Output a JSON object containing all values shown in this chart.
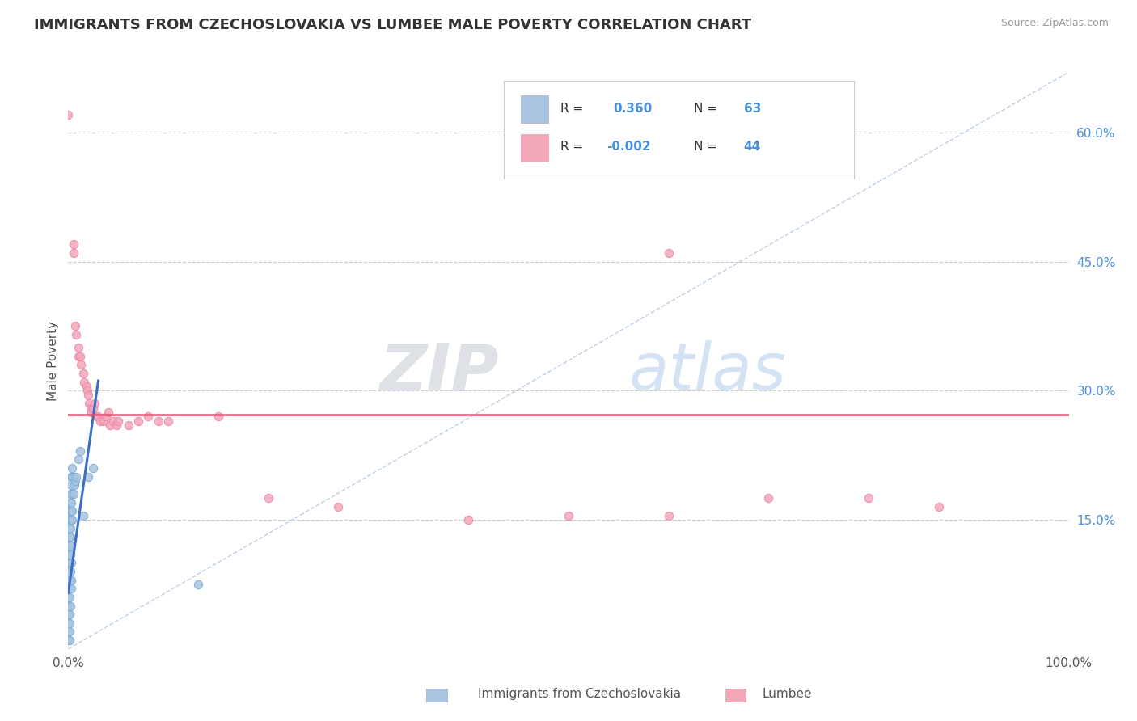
{
  "title": "IMMIGRANTS FROM CZECHOSLOVAKIA VS LUMBEE MALE POVERTY CORRELATION CHART",
  "source": "Source: ZipAtlas.com",
  "ylabel": "Male Poverty",
  "series1_color": "#a8c4e0",
  "series1_edge": "#7aafd4",
  "series2_color": "#f4a7b9",
  "series2_edge": "#e888a8",
  "trend1_color": "#3a6fc4",
  "trend2_color": "#e05070",
  "diagonal_color": "#b0c4de",
  "xlim": [
    0.0,
    1.0
  ],
  "ylim": [
    0.0,
    0.67
  ],
  "yticks": [
    0.0,
    0.15,
    0.3,
    0.45,
    0.6
  ],
  "ytick_labels": [
    "",
    "15.0%",
    "30.0%",
    "45.0%",
    "60.0%"
  ],
  "xticks": [
    0.0,
    1.0
  ],
  "xtick_labels": [
    "0.0%",
    "100.0%"
  ],
  "background_color": "#ffffff",
  "watermark": "ZIPatlas",
  "blue_dots": [
    [
      0.0,
      0.01
    ],
    [
      0.0,
      0.02
    ],
    [
      0.0,
      0.03
    ],
    [
      0.0,
      0.04
    ],
    [
      0.0,
      0.05
    ],
    [
      0.0,
      0.06
    ],
    [
      0.0,
      0.07
    ],
    [
      0.0,
      0.08
    ],
    [
      0.0,
      0.09
    ],
    [
      0.0,
      0.1
    ],
    [
      0.0,
      0.11
    ],
    [
      0.0,
      0.12
    ],
    [
      0.001,
      0.01
    ],
    [
      0.001,
      0.02
    ],
    [
      0.001,
      0.03
    ],
    [
      0.001,
      0.04
    ],
    [
      0.001,
      0.05
    ],
    [
      0.001,
      0.06
    ],
    [
      0.001,
      0.07
    ],
    [
      0.001,
      0.08
    ],
    [
      0.001,
      0.09
    ],
    [
      0.001,
      0.1
    ],
    [
      0.001,
      0.11
    ],
    [
      0.001,
      0.12
    ],
    [
      0.001,
      0.13
    ],
    [
      0.001,
      0.14
    ],
    [
      0.001,
      0.15
    ],
    [
      0.001,
      0.16
    ],
    [
      0.002,
      0.05
    ],
    [
      0.002,
      0.08
    ],
    [
      0.002,
      0.09
    ],
    [
      0.002,
      0.1
    ],
    [
      0.002,
      0.11
    ],
    [
      0.002,
      0.12
    ],
    [
      0.002,
      0.13
    ],
    [
      0.002,
      0.14
    ],
    [
      0.002,
      0.15
    ],
    [
      0.002,
      0.16
    ],
    [
      0.002,
      0.17
    ],
    [
      0.002,
      0.18
    ],
    [
      0.003,
      0.07
    ],
    [
      0.003,
      0.08
    ],
    [
      0.003,
      0.1
    ],
    [
      0.003,
      0.15
    ],
    [
      0.003,
      0.16
    ],
    [
      0.003,
      0.17
    ],
    [
      0.003,
      0.18
    ],
    [
      0.003,
      0.19
    ],
    [
      0.003,
      0.2
    ],
    [
      0.004,
      0.15
    ],
    [
      0.004,
      0.16
    ],
    [
      0.004,
      0.2
    ],
    [
      0.004,
      0.21
    ],
    [
      0.005,
      0.18
    ],
    [
      0.005,
      0.2
    ],
    [
      0.006,
      0.19
    ],
    [
      0.007,
      0.195
    ],
    [
      0.008,
      0.2
    ],
    [
      0.01,
      0.22
    ],
    [
      0.012,
      0.23
    ],
    [
      0.015,
      0.155
    ],
    [
      0.02,
      0.2
    ],
    [
      0.025,
      0.21
    ],
    [
      0.13,
      0.075
    ]
  ],
  "pink_dots": [
    [
      0.0,
      0.62
    ],
    [
      0.005,
      0.47
    ],
    [
      0.005,
      0.46
    ],
    [
      0.007,
      0.375
    ],
    [
      0.008,
      0.365
    ],
    [
      0.01,
      0.35
    ],
    [
      0.01,
      0.34
    ],
    [
      0.012,
      0.34
    ],
    [
      0.013,
      0.33
    ],
    [
      0.015,
      0.32
    ],
    [
      0.016,
      0.31
    ],
    [
      0.018,
      0.305
    ],
    [
      0.019,
      0.3
    ],
    [
      0.02,
      0.295
    ],
    [
      0.021,
      0.285
    ],
    [
      0.022,
      0.28
    ],
    [
      0.023,
      0.275
    ],
    [
      0.025,
      0.28
    ],
    [
      0.026,
      0.285
    ],
    [
      0.028,
      0.27
    ],
    [
      0.03,
      0.27
    ],
    [
      0.032,
      0.265
    ],
    [
      0.035,
      0.265
    ],
    [
      0.038,
      0.27
    ],
    [
      0.04,
      0.275
    ],
    [
      0.042,
      0.26
    ],
    [
      0.045,
      0.265
    ],
    [
      0.048,
      0.26
    ],
    [
      0.05,
      0.265
    ],
    [
      0.06,
      0.26
    ],
    [
      0.07,
      0.265
    ],
    [
      0.08,
      0.27
    ],
    [
      0.09,
      0.265
    ],
    [
      0.1,
      0.265
    ],
    [
      0.15,
      0.27
    ],
    [
      0.2,
      0.175
    ],
    [
      0.27,
      0.165
    ],
    [
      0.4,
      0.15
    ],
    [
      0.5,
      0.155
    ],
    [
      0.6,
      0.155
    ],
    [
      0.7,
      0.175
    ],
    [
      0.8,
      0.175
    ],
    [
      0.87,
      0.165
    ],
    [
      0.6,
      0.46
    ]
  ],
  "pink_hline_y": 0.272,
  "blue_trend_x0": 0.0,
  "blue_trend_y0": 0.065,
  "blue_trend_x1": 0.028,
  "blue_trend_y1": 0.295
}
